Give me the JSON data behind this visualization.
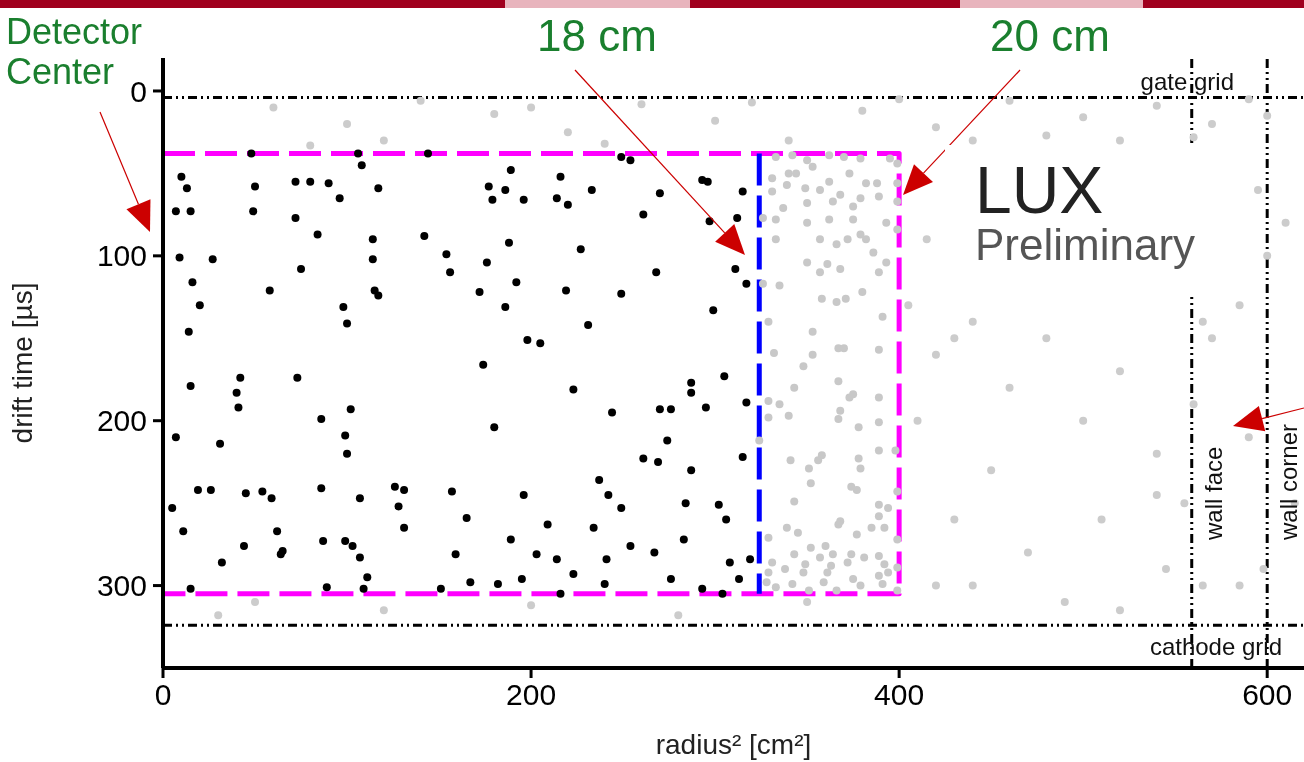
{
  "chart_data": {
    "type": "scatter",
    "xlabel": "radius² [cm²]",
    "ylabel": "drift time [µs]",
    "xlim": [
      0,
      620
    ],
    "ylim": [
      350,
      -20
    ],
    "xticks": [
      0,
      200,
      400,
      600
    ],
    "yticks": [
      0,
      100,
      200,
      300
    ],
    "marker": "circle",
    "annotations": [
      "Detector Center",
      "18 cm",
      "20 cm",
      "LUX",
      "Preliminary"
    ],
    "ref_lines": [
      {
        "axis": "y",
        "value": 4,
        "label": "gate grid",
        "color": "#000000",
        "line_style": "dashed"
      },
      {
        "axis": "y",
        "value": 324,
        "label": "cathode grid",
        "color": "#000000",
        "line_style": "dashed"
      },
      {
        "axis": "x",
        "value": 559,
        "label": "wall face",
        "color": "#000000",
        "line_style": "dashed"
      },
      {
        "axis": "x",
        "value": 600,
        "label": "wall corner",
        "color": "#000000",
        "line_style": "dashed"
      }
    ],
    "series": [
      {
        "color": "#cccccc",
        "x": [
          60,
          100,
          140,
          180,
          220,
          260,
          300,
          340,
          380,
          420,
          460,
          500,
          540,
          570,
          590,
          600,
          560,
          520,
          480,
          440,
          400,
          320,
          240,
          200,
          120,
          80,
          430,
          415,
          405,
          420,
          440,
          460,
          480,
          500,
          520,
          540,
          560,
          540,
          590,
          565,
          585,
          600,
          595,
          450,
          430,
          470,
          510,
          545,
          565,
          585,
          555,
          490,
          420,
          520,
          570,
          598,
          410,
          440,
          50,
          120,
          200,
          280,
          350,
          30,
          610,
          615
        ],
        "values": [
          10,
          20,
          6,
          14,
          25,
          8,
          18,
          30,
          12,
          22,
          6,
          16,
          9,
          20,
          5,
          15,
          28,
          30,
          27,
          30,
          5,
          7,
          32,
          10,
          30,
          33,
          150,
          90,
          130,
          160,
          140,
          180,
          150,
          200,
          170,
          220,
          190,
          245,
          210,
          140,
          130,
          100,
          60,
          230,
          260,
          280,
          260,
          290,
          300,
          300,
          250,
          310,
          300,
          315,
          150,
          290,
          200,
          300,
          310,
          315,
          312,
          318,
          310,
          318,
          80,
          250
        ]
      },
      {
        "color": "#000000",
        "x": [
          7,
          13,
          15,
          10,
          9,
          27,
          20,
          16,
          14,
          15,
          7,
          19,
          5,
          11,
          31,
          26,
          15,
          32,
          40,
          41,
          42,
          45,
          44,
          54,
          62,
          59,
          65,
          64,
          48,
          50,
          49,
          72,
          80,
          72,
          84,
          75,
          58,
          73,
          90,
          96,
          86,
          86,
          87,
          89,
          99,
          100,
          99,
          103,
          107,
          107,
          102,
          100,
          98,
          106,
          108,
          117,
          114,
          117,
          115,
          114,
          126,
          131,
          128,
          109,
          111,
          131,
          144,
          142,
          154,
          156,
          151,
          167,
          159,
          165,
          172,
          176,
          177,
          179,
          186,
          186,
          188,
          189,
          174,
          180,
          182,
          189,
          192,
          196,
          203,
          209,
          214,
          216,
          220,
          219,
          223,
          227,
          231,
          234,
          237,
          240,
          242,
          244,
          254,
          249,
          261,
          268,
          261,
          269,
          274,
          276,
          283,
          287,
          293,
          297,
          299,
          312,
          315,
          311,
          317,
          317,
          315,
          319,
          313,
          304,
          293,
          308,
          305,
          287,
          287,
          249,
          254,
          267,
          241,
          223,
          216,
          195,
          157,
          296,
          249,
          270,
          233,
          214,
          196,
          270,
          205,
          198,
          276,
          295,
          302,
          306,
          284
        ],
        "values": [
          73,
          59,
          73,
          52,
          101,
          102,
          130,
          116,
          146,
          179,
          210,
          242,
          253,
          267,
          214,
          242,
          302,
          286,
          183,
          192,
          174,
          244,
          276,
          243,
          267,
          247,
          279,
          281,
          38,
          58,
          73,
          55,
          55,
          77,
          87,
          108,
          121,
          174,
          56,
          65,
          199,
          241,
          273,
          301,
          209,
          220,
          273,
          276,
          283,
          247,
          193,
          141,
          131,
          38,
          45,
          59,
          102,
          124,
          121,
          90,
          240,
          242,
          252,
          302,
          295,
          265,
          38,
          88,
          99,
          110,
          302,
          298,
          281,
          259,
          122,
          104,
          58,
          66,
          60,
          131,
          92,
          48,
          166,
          204,
          299,
          272,
          116,
          245,
          281,
          263,
          284,
          52,
          69,
          121,
          181,
          96,
          142,
          265,
          236,
          299,
          245,
          195,
          42,
          123,
          75,
          110,
          223,
          225,
          212,
          296,
          272,
          230,
          54,
          79,
          133,
          77,
          61,
          108,
          117,
          189,
          222,
          284,
          296,
          305,
          302,
          286,
          173,
          177,
          183,
          253,
          276,
          280,
          284,
          293,
          305,
          296,
          243,
          55,
          40,
          62,
          60,
          65,
          66,
          193,
          153,
          151,
          193,
          192,
          251,
          260,
          250
        ]
      },
      {
        "color": "#c8c8c8",
        "x": [
          333,
          342,
          350,
          362,
          370,
          379,
          395,
          399,
          340,
          344,
          353,
          331,
          331,
          339,
          349,
          357,
          362,
          373,
          382,
          388,
          399,
          399,
          389,
          379,
          368,
          364,
          375,
          350,
          337,
          326,
          333,
          350,
          362,
          375,
          393,
          399,
          333,
          357,
          366,
          372,
          382,
          386,
          379,
          393,
          350,
          361,
          368,
          357,
          389,
          326,
          335,
          358,
          366,
          371,
          380,
          391,
          329,
          353,
          367,
          370,
          389,
          332,
          353,
          348,
          343,
          367,
          373,
          375,
          389,
          329,
          335,
          340,
          329,
          368,
          367,
          378,
          389,
          324,
          398,
          341,
          358,
          356,
          378,
          379,
          389,
          351,
          352,
          374,
          377,
          399,
          343,
          389,
          394,
          389,
          339,
          345,
          368,
          367,
          329,
          377,
          385,
          392,
          399,
          352,
          360,
          357,
          364,
          343,
          374,
          381,
          389,
          331,
          349,
          363,
          372,
          392,
          399,
          329,
          338,
          348,
          361,
          375,
          389,
          328,
          342,
          359,
          366,
          379,
          391,
          399,
          351,
          333,
          394
        ],
        "values": [
          40,
          39,
          42,
          39,
          40,
          41,
          41,
          44,
          50,
          50,
          46,
          53,
          61,
          57,
          59,
          60,
          55,
          50,
          56,
          56,
          56,
          67,
          64,
          65,
          63,
          67,
          70,
          68,
          71,
          77,
          78,
          80,
          78,
          78,
          80,
          84,
          90,
          90,
          93,
          90,
          90,
          98,
          87,
          104,
          104,
          105,
          108,
          110,
          110,
          117,
          118,
          126,
          128,
          126,
          122,
          137,
          140,
          146,
          156,
          156,
          157,
          159,
          160,
          167,
          180,
          176,
          186,
          184,
          186,
          188,
          190,
          197,
          198,
          194,
          199,
          204,
          201,
          212,
          218,
          224,
          221,
          224,
          223,
          229,
          218,
          229,
          238,
          240,
          242,
          243,
          249,
          251,
          253,
          258,
          265,
          268,
          261,
          263,
          271,
          269,
          265,
          265,
          272,
          277,
          276,
          283,
          281,
          281,
          281,
          283,
          282,
          286,
          287,
          288,
          286,
          287,
          289,
          292,
          290,
          292,
          292,
          296,
          294,
          298,
          299,
          298,
          303,
          300,
          299,
          303,
          303,
          301,
          292
        ]
      },
      {
        "type": "line",
        "color": "#ff00ff",
        "marker": "none",
        "line_style": "dashed",
        "x": [
          0,
          400,
          400,
          0
        ],
        "values": [
          38,
          38,
          305,
          305
        ]
      },
      {
        "type": "line",
        "color": "#0000ff",
        "marker": "none",
        "line_style": "dashed",
        "x": [
          324,
          324
        ],
        "values": [
          38,
          305
        ]
      }
    ]
  }
}
